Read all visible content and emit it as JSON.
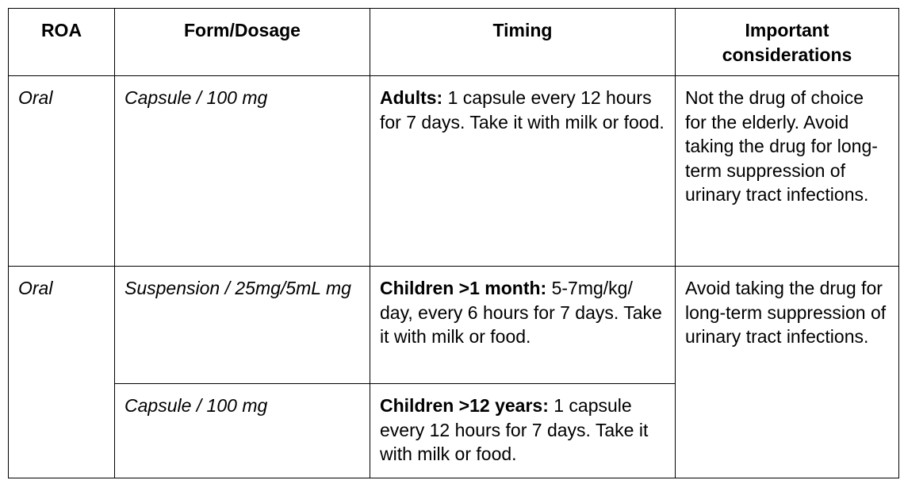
{
  "table": {
    "headers": {
      "roa": "ROA",
      "form": "Form/Dosage",
      "timing": "Timing",
      "considerations": "Important considerations"
    },
    "rows": [
      {
        "roa": "Oral",
        "form": "Capsule / 100 mg",
        "timing_bold": "Adults:",
        "timing_text": " 1 capsule every 12 hours for 7 days. Take it with milk or food.",
        "considerations": "Not the drug of choice for the elderly. Avoid taking the drug for long-term suppression of urinary tract infections."
      },
      {
        "roa": "Oral",
        "form": "Suspension / 25mg/5mL mg",
        "timing_bold": "Children >1 month:",
        "timing_text": " 5-7mg/kg/ day, every 6 hours for 7 days. Take it with milk or food.",
        "considerations": "Avoid taking the drug for long-term suppression of urinary tract infections."
      },
      {
        "form": "Capsule / 100 mg",
        "timing_bold": "Children >12 years:",
        "timing_text": " 1 capsule every 12 hours for 7 days. Take it with milk or food."
      }
    ]
  }
}
